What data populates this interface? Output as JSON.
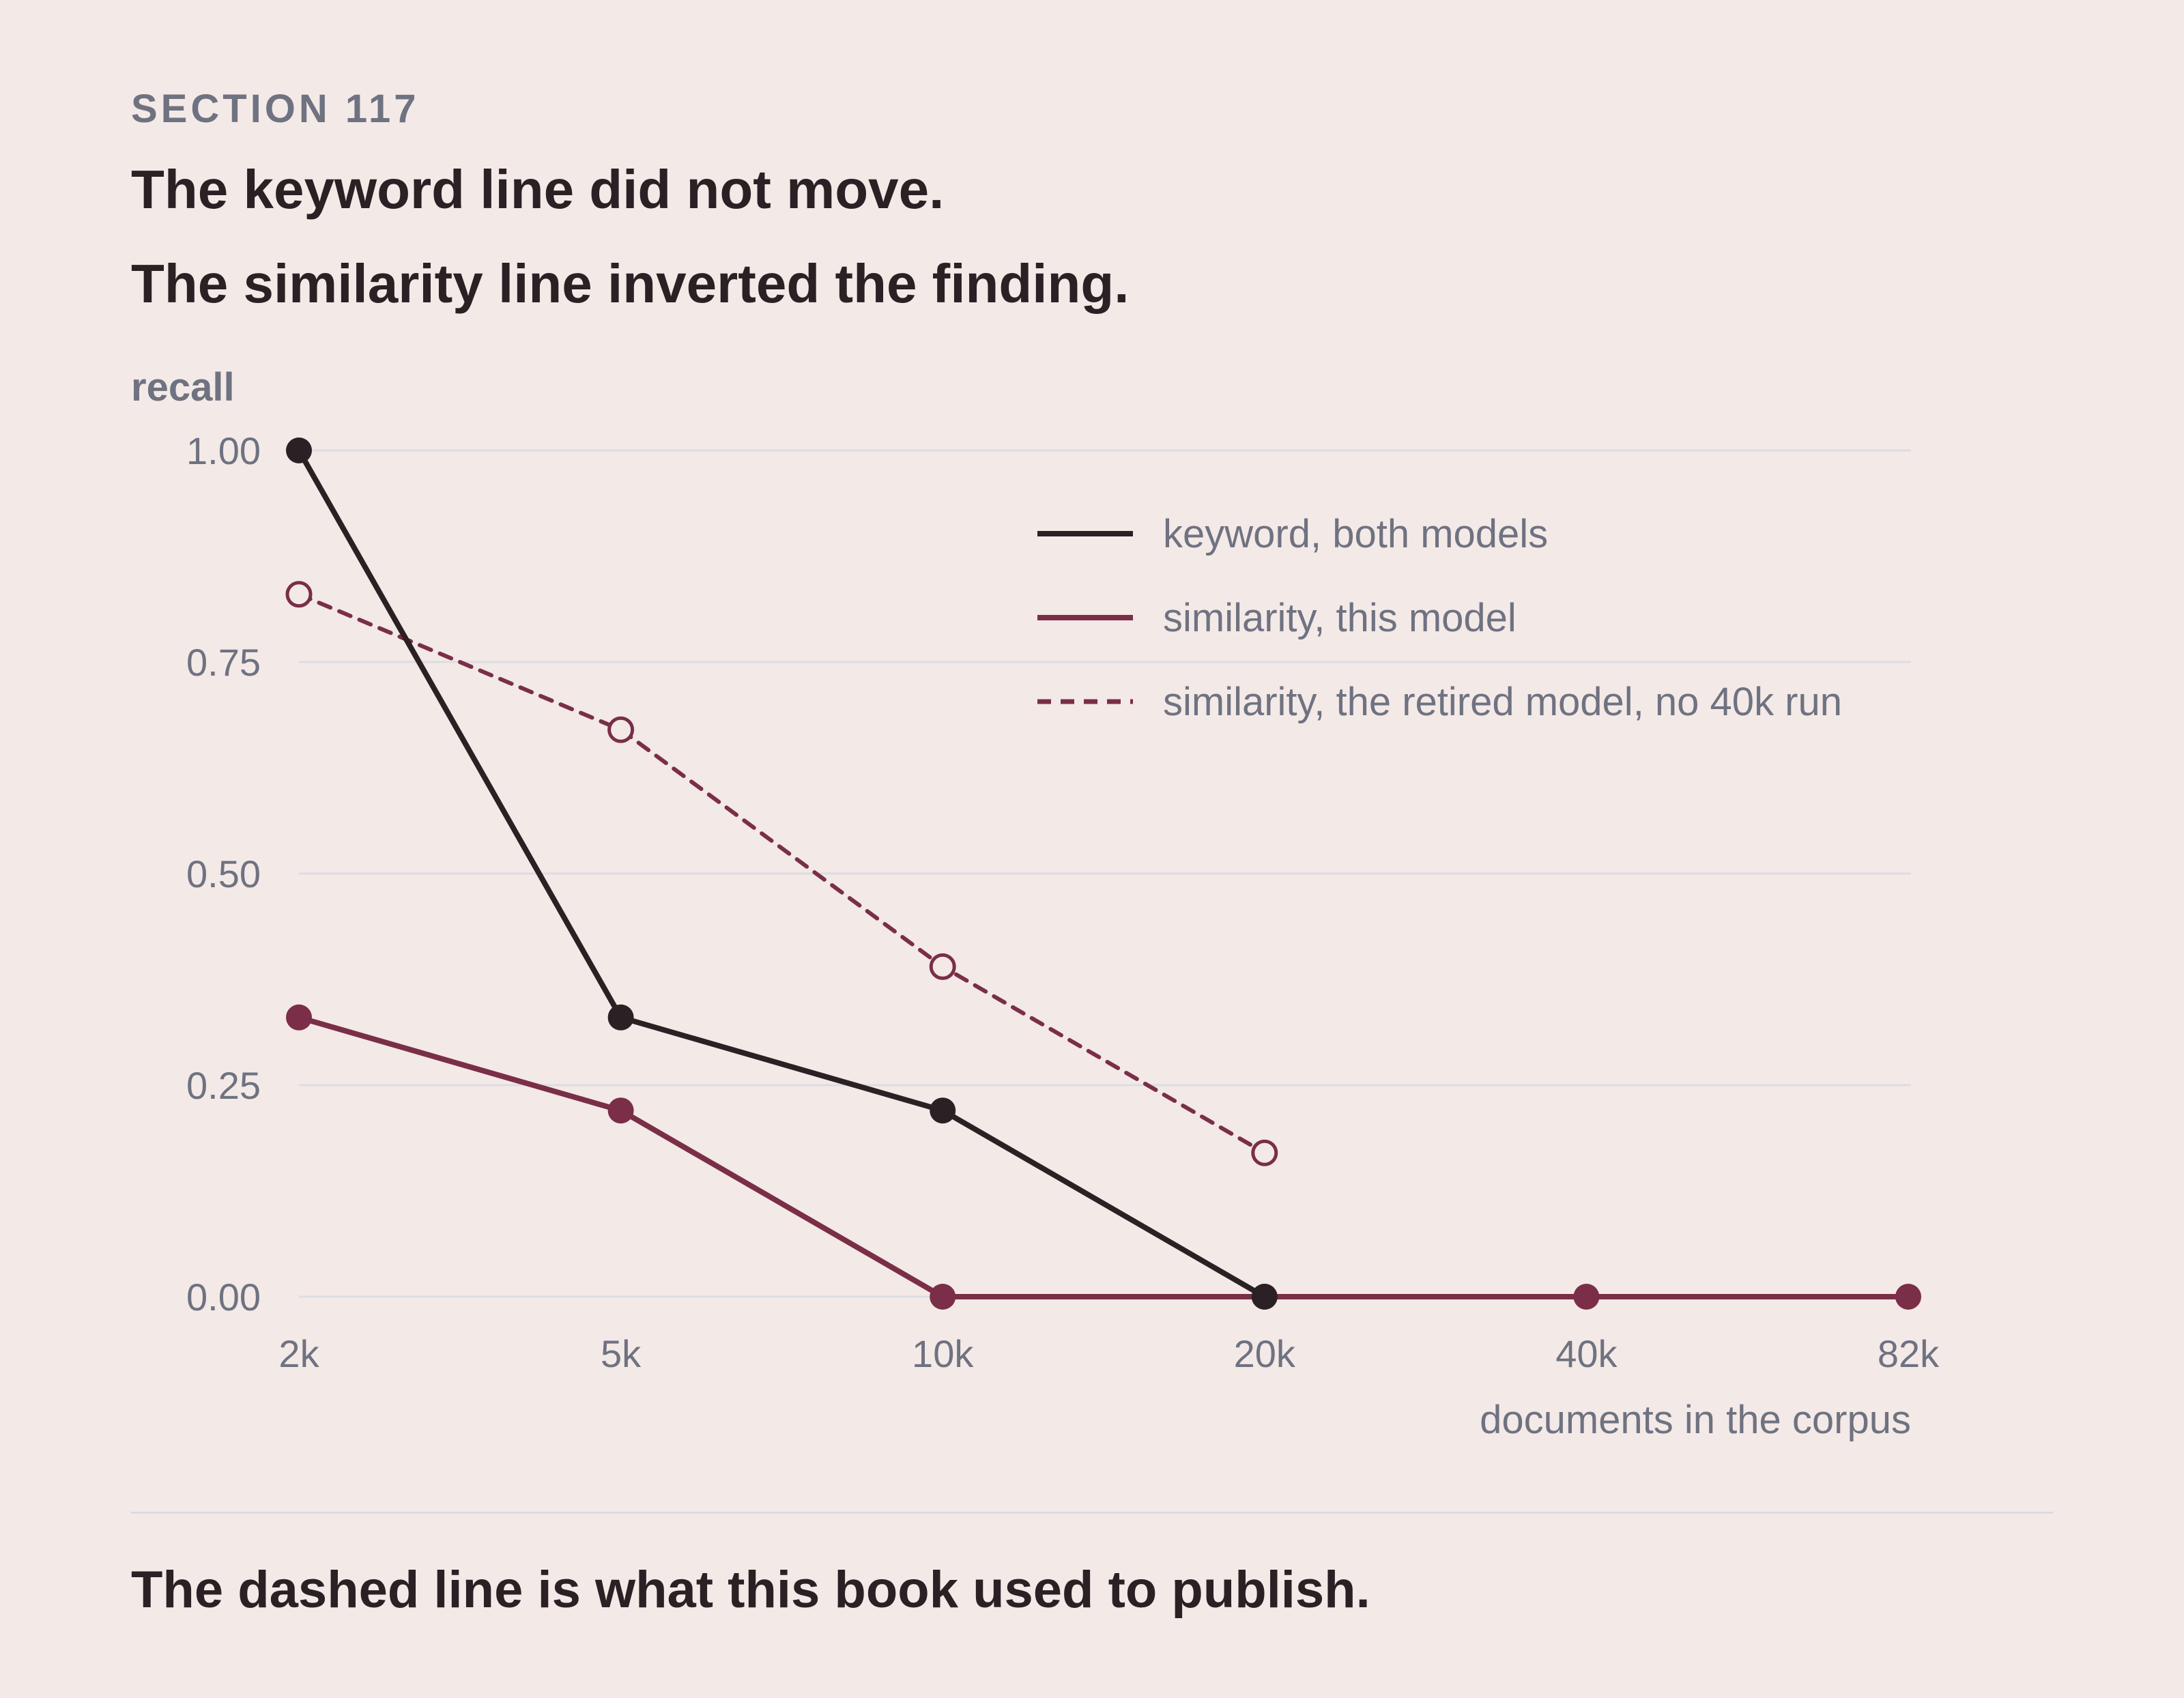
{
  "header": {
    "eyebrow": "SECTION 117",
    "title_line1": "The keyword line did not move.",
    "title_line2": "The similarity line inverted the finding."
  },
  "footer": {
    "caption": "The dashed line is what this book used to publish."
  },
  "colors": {
    "background": "#f3e9e7",
    "keyword": "#2b2124",
    "similarity": "#7a2e48",
    "muted_text": "#6f7280",
    "grid": "#dcdde3"
  },
  "chart_data": {
    "type": "line",
    "ylabel": "recall",
    "xlabel": "documents in the corpus",
    "categories": [
      "2k",
      "5k",
      "10k",
      "20k",
      "40k",
      "82k"
    ],
    "ylim": [
      0,
      1
    ],
    "yticks": [
      "0.00",
      "0.25",
      "0.50",
      "0.75",
      "1.00"
    ],
    "grid": true,
    "legend_position": "top-right",
    "series": [
      {
        "name": "keyword, both models",
        "values": [
          1.0,
          0.33,
          0.22,
          0.0,
          null,
          null
        ],
        "style": "solid",
        "marker": "filled",
        "color": "#2b2124"
      },
      {
        "name": "similarity, this model",
        "values": [
          0.33,
          0.22,
          0.0,
          0.0,
          0.0,
          0.0
        ],
        "style": "solid",
        "marker": "filled",
        "color": "#7a2e48"
      },
      {
        "name": "similarity, the retired model, no 40k run",
        "values": [
          0.83,
          0.67,
          0.39,
          0.17,
          null,
          null
        ],
        "style": "dashed",
        "marker": "hollow",
        "color": "#7a2e48"
      }
    ]
  }
}
